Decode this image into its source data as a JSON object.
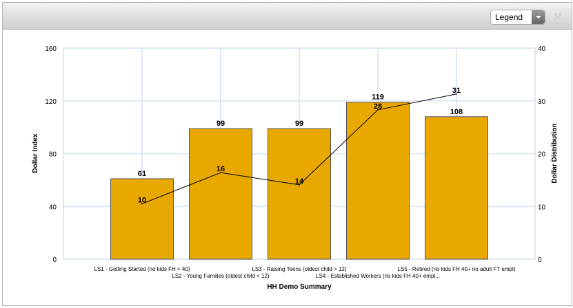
{
  "toolbar": {
    "legend_label": "Legend",
    "expand_icon": "expand-icon"
  },
  "chart_data": {
    "type": "bar+line",
    "categories": [
      "LS1 - Getting Started (no kids FH < 40)",
      "LS2 - Young Families (oldest child < 12)",
      "LS3 - Raising Teens (oldest child > 12)",
      "LS4 - Established Workers (no kids FH 40+ empl...",
      "LS5 - Retired (no kids FH 40+ no adult FT empl)"
    ],
    "series": [
      {
        "type": "bar",
        "axis": "left",
        "values": [
          61,
          99,
          99,
          119,
          108
        ],
        "labels": [
          "61",
          "99",
          "99",
          "119",
          "108"
        ],
        "color": "#e8a800"
      },
      {
        "type": "line",
        "axis": "right",
        "values": [
          10.5,
          16.4,
          14.1,
          28.3,
          31.3
        ],
        "labels": [
          "10",
          "16",
          "14",
          "28",
          "31"
        ],
        "color": "#000000"
      }
    ],
    "xlabel": "HH Demo Summary",
    "ylabel": "Dollar Index",
    "y2label": "Dollar Distribution",
    "ylim": [
      0,
      160
    ],
    "yticks": [
      "0",
      "40",
      "80",
      "120",
      "160"
    ],
    "y2lim": [
      0,
      40
    ],
    "y2ticks": [
      "0",
      "10",
      "20",
      "30",
      "40"
    ],
    "grid": true
  }
}
